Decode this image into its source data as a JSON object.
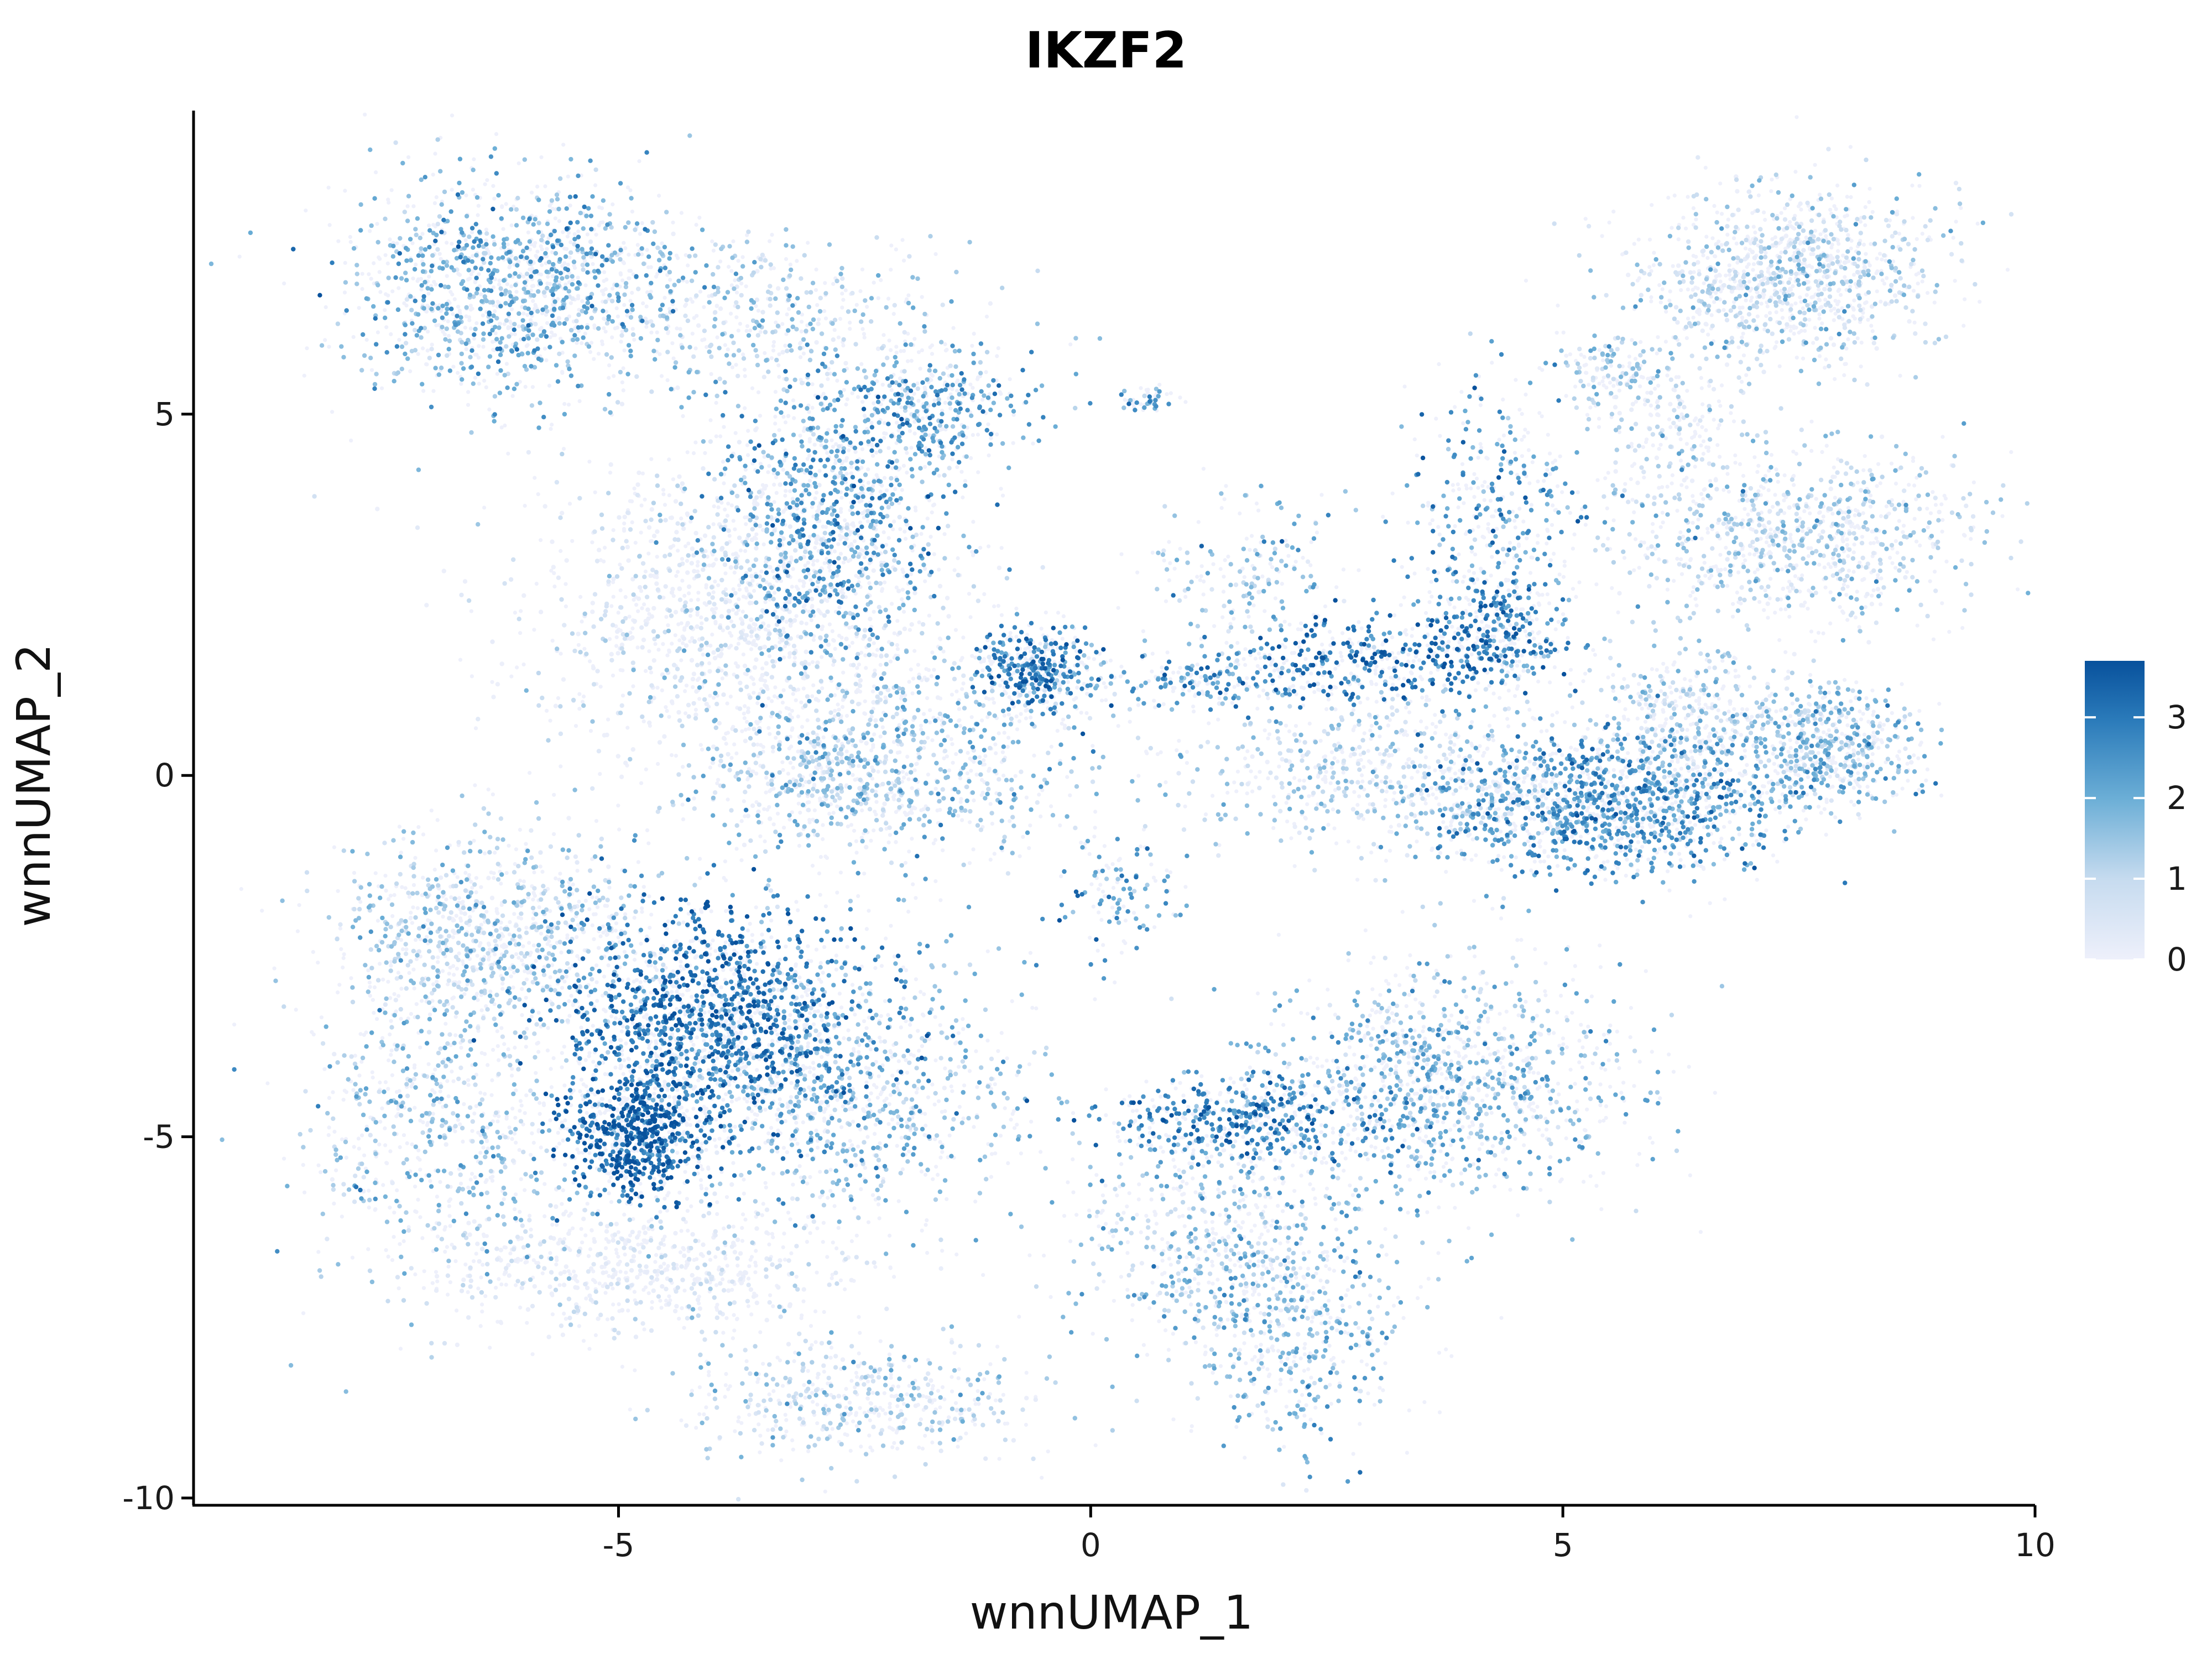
{
  "chart_data": {
    "type": "scatter",
    "title": "IKZF2",
    "xlabel": "wnnUMAP_1",
    "ylabel": "wnnUMAP_2",
    "xlim": [
      -9.5,
      10
    ],
    "ylim": [
      -10.1,
      9.2
    ],
    "x_ticks": [
      -5,
      0,
      5,
      10
    ],
    "y_ticks": [
      -10,
      -5,
      0,
      5
    ],
    "x_tick_labels": [
      "-5",
      "0",
      "5",
      "10"
    ],
    "y_tick_labels": [
      "-10",
      "-5",
      "0",
      "5"
    ],
    "grid": false,
    "legend": {
      "position": "right",
      "type": "colorbar",
      "min": 0,
      "max": 3.7,
      "ticks": [
        0,
        1,
        2,
        3
      ],
      "tick_labels": [
        "0",
        "1",
        "2",
        "3"
      ],
      "color_low": "#eef0fb",
      "color_high": "#08519c"
    },
    "clusters": [
      {
        "center": [
          -6.1,
          6.8
        ],
        "spread": [
          0.9,
          0.75
        ],
        "n": 1300,
        "expr": 1.9
      },
      {
        "center": [
          -3.6,
          6.3
        ],
        "spread": [
          1.1,
          0.6
        ],
        "n": 500,
        "expr": 1.2
      },
      {
        "center": [
          -2.8,
          3.6
        ],
        "spread": [
          0.6,
          0.9
        ],
        "n": 1000,
        "expr": 2.3
      },
      {
        "center": [
          -1.7,
          5.1
        ],
        "spread": [
          0.5,
          0.4
        ],
        "n": 400,
        "expr": 2.2
      },
      {
        "center": [
          -3.9,
          2.2
        ],
        "spread": [
          1.1,
          1.1
        ],
        "n": 1200,
        "expr": 0.4
      },
      {
        "center": [
          -2.0,
          0.4
        ],
        "spread": [
          1.1,
          0.9
        ],
        "n": 900,
        "expr": 1.6
      },
      {
        "center": [
          -0.6,
          1.5
        ],
        "spread": [
          0.3,
          0.3
        ],
        "n": 400,
        "expr": 2.9
      },
      {
        "center": [
          -2.8,
          -0.1
        ],
        "spread": [
          0.5,
          0.4
        ],
        "n": 250,
        "expr": 1.4
      },
      {
        "center": [
          1.3,
          1.3
        ],
        "spread": [
          0.7,
          0.2
        ],
        "n": 220,
        "expr": 2.4
      },
      {
        "center": [
          3.0,
          1.6
        ],
        "spread": [
          0.6,
          0.3
        ],
        "n": 330,
        "expr": 3.2
      },
      {
        "center": [
          1.7,
          2.8
        ],
        "spread": [
          0.5,
          0.6
        ],
        "n": 200,
        "expr": 1.5
      },
      {
        "center": [
          4.3,
          3.2
        ],
        "spread": [
          0.45,
          1.1
        ],
        "n": 500,
        "expr": 2.4
      },
      {
        "center": [
          4.3,
          1.9
        ],
        "spread": [
          0.35,
          0.35
        ],
        "n": 250,
        "expr": 2.8
      },
      {
        "center": [
          5.5,
          -0.4
        ],
        "spread": [
          1.0,
          0.5
        ],
        "n": 1400,
        "expr": 2.4
      },
      {
        "center": [
          3.1,
          0.1
        ],
        "spread": [
          1.0,
          0.6
        ],
        "n": 600,
        "expr": 1.1
      },
      {
        "center": [
          6.3,
          0.8
        ],
        "spread": [
          0.5,
          0.5
        ],
        "n": 400,
        "expr": 1.2
      },
      {
        "center": [
          7.8,
          0.4
        ],
        "spread": [
          0.5,
          0.45
        ],
        "n": 600,
        "expr": 1.6
      },
      {
        "center": [
          7.5,
          3.3
        ],
        "spread": [
          1.0,
          0.6
        ],
        "n": 900,
        "expr": 1.2
      },
      {
        "center": [
          7.4,
          6.9
        ],
        "spread": [
          0.8,
          0.6
        ],
        "n": 1100,
        "expr": 1.1
      },
      {
        "center": [
          5.5,
          5.6
        ],
        "spread": [
          0.3,
          0.2
        ],
        "n": 120,
        "expr": 1.3
      },
      {
        "center": [
          6.2,
          4.8
        ],
        "spread": [
          0.4,
          0.5
        ],
        "n": 200,
        "expr": 0.9
      },
      {
        "center": [
          -6.4,
          -2.2
        ],
        "spread": [
          0.8,
          0.7
        ],
        "n": 900,
        "expr": 1.3
      },
      {
        "center": [
          -4.1,
          -3.4
        ],
        "spread": [
          0.8,
          0.8
        ],
        "n": 1700,
        "expr": 3.0
      },
      {
        "center": [
          -4.8,
          -5.0
        ],
        "spread": [
          0.4,
          0.4
        ],
        "n": 800,
        "expr": 3.4
      },
      {
        "center": [
          -2.6,
          -4.4
        ],
        "spread": [
          1.0,
          0.9
        ],
        "n": 1000,
        "expr": 1.7
      },
      {
        "center": [
          -6.9,
          -4.8
        ],
        "spread": [
          0.7,
          1.1
        ],
        "n": 700,
        "expr": 1.5
      },
      {
        "center": [
          -4.8,
          -6.8
        ],
        "spread": [
          1.1,
          0.5
        ],
        "n": 700,
        "expr": 0.3
      },
      {
        "center": [
          -2.4,
          -8.7
        ],
        "spread": [
          0.9,
          0.4
        ],
        "n": 500,
        "expr": 1.2
      },
      {
        "center": [
          1.5,
          -4.8
        ],
        "spread": [
          0.8,
          0.3
        ],
        "n": 500,
        "expr": 2.8
      },
      {
        "center": [
          3.8,
          -4.3
        ],
        "spread": [
          1.0,
          0.8
        ],
        "n": 1200,
        "expr": 1.8
      },
      {
        "center": [
          1.3,
          -6.5
        ],
        "spread": [
          0.7,
          0.8
        ],
        "n": 500,
        "expr": 1.6
      },
      {
        "center": [
          2.2,
          -7.6
        ],
        "spread": [
          0.6,
          0.8
        ],
        "n": 500,
        "expr": 1.9
      },
      {
        "center": [
          0.3,
          -1.6
        ],
        "spread": [
          0.3,
          0.5
        ],
        "n": 120,
        "expr": 2.2
      },
      {
        "center": [
          0.6,
          5.2
        ],
        "spread": [
          0.15,
          0.1
        ],
        "n": 50,
        "expr": 2.0
      }
    ]
  }
}
